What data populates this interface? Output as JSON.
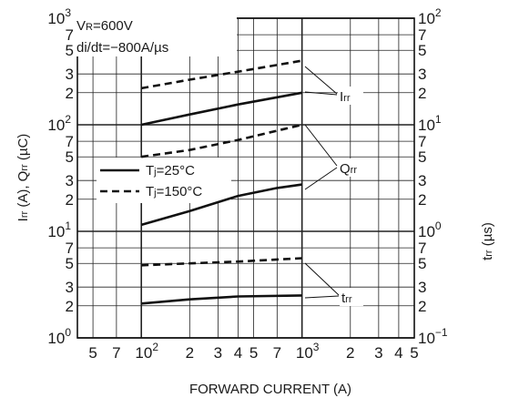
{
  "chart_data": {
    "type": "line",
    "xlabel": "FORWARD CURRENT (A)",
    "ylabel": "Irr (A), Qrr (µC)",
    "ylabel_main": "I",
    "ylabel_sub1": "rr",
    "ylabel_mid": " (A), Q",
    "ylabel_sub2": "rr",
    "ylabel_tail": " (µC)",
    "y2label": "trr (µs)",
    "y2label_main": "t",
    "y2label_sub": "rr",
    "y2label_tail": " (µs)",
    "x_scale": "log",
    "y_scale": "log",
    "xlim": [
      40,
      5000
    ],
    "ylim": [
      1,
      1000
    ],
    "y2lim": [
      0.1,
      100
    ],
    "grid": true,
    "x_ticks": [
      {
        "value": 50,
        "base": "5",
        "exp": ""
      },
      {
        "value": 70,
        "base": "7",
        "exp": ""
      },
      {
        "value": 100,
        "base": "10",
        "exp": "2"
      },
      {
        "value": 200,
        "base": "2",
        "exp": ""
      },
      {
        "value": 300,
        "base": "3",
        "exp": ""
      },
      {
        "value": 400,
        "base": "4",
        "exp": ""
      },
      {
        "value": 500,
        "base": "5",
        "exp": ""
      },
      {
        "value": 700,
        "base": "7",
        "exp": ""
      },
      {
        "value": 1000,
        "base": "10",
        "exp": "3"
      },
      {
        "value": 2000,
        "base": "2",
        "exp": ""
      },
      {
        "value": 3000,
        "base": "3",
        "exp": ""
      },
      {
        "value": 4000,
        "base": "4",
        "exp": ""
      },
      {
        "value": 5000,
        "base": "5",
        "exp": ""
      }
    ],
    "y_ticks": [
      {
        "value": 1,
        "base": "10",
        "exp": "0"
      },
      {
        "value": 2,
        "base": "2",
        "exp": ""
      },
      {
        "value": 3,
        "base": "3",
        "exp": ""
      },
      {
        "value": 5,
        "base": "5",
        "exp": ""
      },
      {
        "value": 7,
        "base": "7",
        "exp": ""
      },
      {
        "value": 10,
        "base": "10",
        "exp": "1"
      },
      {
        "value": 20,
        "base": "2",
        "exp": ""
      },
      {
        "value": 30,
        "base": "3",
        "exp": ""
      },
      {
        "value": 50,
        "base": "5",
        "exp": ""
      },
      {
        "value": 70,
        "base": "7",
        "exp": ""
      },
      {
        "value": 100,
        "base": "10",
        "exp": "2"
      },
      {
        "value": 200,
        "base": "2",
        "exp": ""
      },
      {
        "value": 300,
        "base": "3",
        "exp": ""
      },
      {
        "value": 500,
        "base": "5",
        "exp": ""
      },
      {
        "value": 700,
        "base": "7",
        "exp": ""
      },
      {
        "value": 1000,
        "base": "10",
        "exp": "3"
      }
    ],
    "y2_ticks": [
      {
        "value": 0.1,
        "base": "10",
        "exp": "−1"
      },
      {
        "value": 0.2,
        "base": "2",
        "exp": ""
      },
      {
        "value": 0.3,
        "base": "3",
        "exp": ""
      },
      {
        "value": 0.5,
        "base": "5",
        "exp": ""
      },
      {
        "value": 0.7,
        "base": "7",
        "exp": ""
      },
      {
        "value": 1,
        "base": "10",
        "exp": "0"
      },
      {
        "value": 2,
        "base": "2",
        "exp": ""
      },
      {
        "value": 3,
        "base": "3",
        "exp": ""
      },
      {
        "value": 5,
        "base": "5",
        "exp": ""
      },
      {
        "value": 7,
        "base": "7",
        "exp": ""
      },
      {
        "value": 10,
        "base": "10",
        "exp": "1"
      },
      {
        "value": 20,
        "base": "2",
        "exp": ""
      },
      {
        "value": 30,
        "base": "3",
        "exp": ""
      },
      {
        "value": 50,
        "base": "5",
        "exp": ""
      },
      {
        "value": 70,
        "base": "7",
        "exp": ""
      },
      {
        "value": 100,
        "base": "10",
        "exp": "2"
      }
    ],
    "conditions": [
      {
        "pre": "V",
        "sub": "R",
        "post": "=600V"
      },
      {
        "pre": "di/dt=−800A/µs",
        "sub": "",
        "post": ""
      }
    ],
    "legend": [
      {
        "label_pre": "T",
        "label_sub": "j",
        "label_post": "=25°C",
        "style": "solid"
      },
      {
        "label_pre": "T",
        "label_sub": "j",
        "label_post": "=150°C",
        "style": "dashed"
      }
    ],
    "annotations": [
      {
        "name": "irr",
        "main": "I",
        "sub": "rr"
      },
      {
        "name": "qrr",
        "main": "Q",
        "sub": "rr"
      },
      {
        "name": "trr",
        "main": "t",
        "sub": "rr"
      }
    ],
    "series": [
      {
        "quantity": "Irr",
        "condition": "Tj=25°C",
        "style": "solid",
        "axis": "left",
        "x": [
          100,
          200,
          400,
          1000
        ],
        "y": [
          100,
          125,
          155,
          200
        ]
      },
      {
        "quantity": "Irr",
        "condition": "Tj=150°C",
        "style": "dashed",
        "axis": "left",
        "x": [
          100,
          200,
          400,
          1000
        ],
        "y": [
          220,
          265,
          315,
          400
        ]
      },
      {
        "quantity": "Qrr",
        "condition": "Tj=25°C",
        "style": "solid",
        "axis": "left",
        "x": [
          100,
          200,
          400,
          700,
          1000
        ],
        "y": [
          11.5,
          15.5,
          21.5,
          25.5,
          27.5
        ]
      },
      {
        "quantity": "Qrr",
        "condition": "Tj=150°C",
        "style": "dashed",
        "axis": "left",
        "x": [
          100,
          200,
          400,
          700,
          1000
        ],
        "y": [
          50,
          58,
          72,
          88,
          100
        ]
      },
      {
        "quantity": "trr",
        "condition": "Tj=25°C",
        "style": "solid",
        "axis": "right",
        "x": [
          100,
          200,
          400,
          1000
        ],
        "y": [
          0.21,
          0.23,
          0.245,
          0.25
        ]
      },
      {
        "quantity": "trr",
        "condition": "Tj=150°C",
        "style": "dashed",
        "axis": "right",
        "x": [
          100,
          200,
          400,
          1000
        ],
        "y": [
          0.48,
          0.5,
          0.52,
          0.56
        ]
      }
    ]
  }
}
